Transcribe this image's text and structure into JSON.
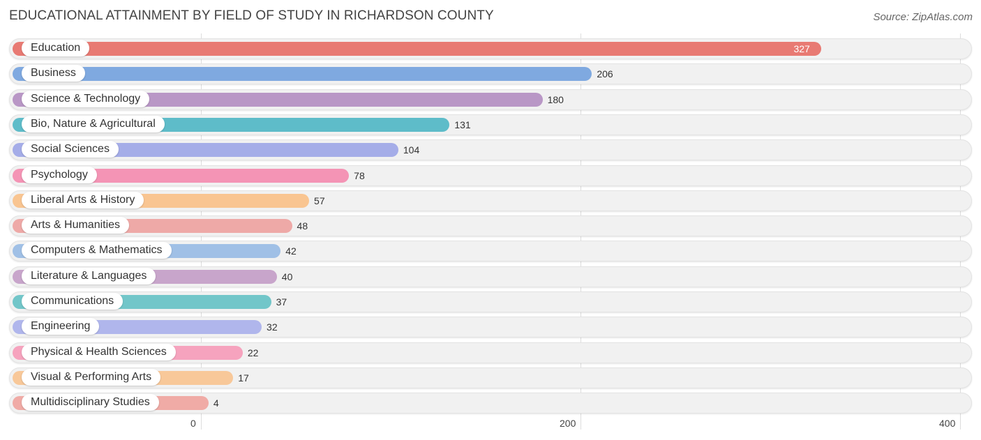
{
  "title": "EDUCATIONAL ATTAINMENT BY FIELD OF STUDY IN RICHARDSON COUNTY",
  "source": "Source: ZipAtlas.com",
  "chart_data": {
    "type": "bar",
    "orientation": "horizontal",
    "title": "EDUCATIONAL ATTAINMENT BY FIELD OF STUDY IN RICHARDSON COUNTY",
    "xlabel": "",
    "ylabel": "",
    "xlim": [
      0,
      400
    ],
    "ticks": [
      0,
      200,
      400
    ],
    "tick_labels": [
      "0",
      "200",
      "400"
    ],
    "grid": true,
    "categories": [
      "Education",
      "Business",
      "Science & Technology",
      "Bio, Nature & Agricultural",
      "Social Sciences",
      "Psychology",
      "Liberal Arts & History",
      "Arts & Humanities",
      "Computers & Mathematics",
      "Literature & Languages",
      "Communications",
      "Engineering",
      "Physical & Health Sciences",
      "Visual & Performing Arts",
      "Multidisciplinary Studies"
    ],
    "values": [
      327,
      206,
      180,
      131,
      104,
      78,
      57,
      48,
      42,
      40,
      37,
      32,
      22,
      17,
      4
    ],
    "value_labels": [
      "327",
      "206",
      "180",
      "131",
      "104",
      "78",
      "57",
      "48",
      "42",
      "40",
      "37",
      "32",
      "22",
      "17",
      "4"
    ],
    "colors": [
      "#e87a73",
      "#7fa9e0",
      "#b997c6",
      "#5ebcc9",
      "#a5ade8",
      "#f494b5",
      "#f9c591",
      "#eea9a7",
      "#a0c0e6",
      "#c8a5cb",
      "#72c6c9",
      "#b0b6ec",
      "#f6a3be",
      "#f8c899",
      "#f0aba6"
    ]
  }
}
